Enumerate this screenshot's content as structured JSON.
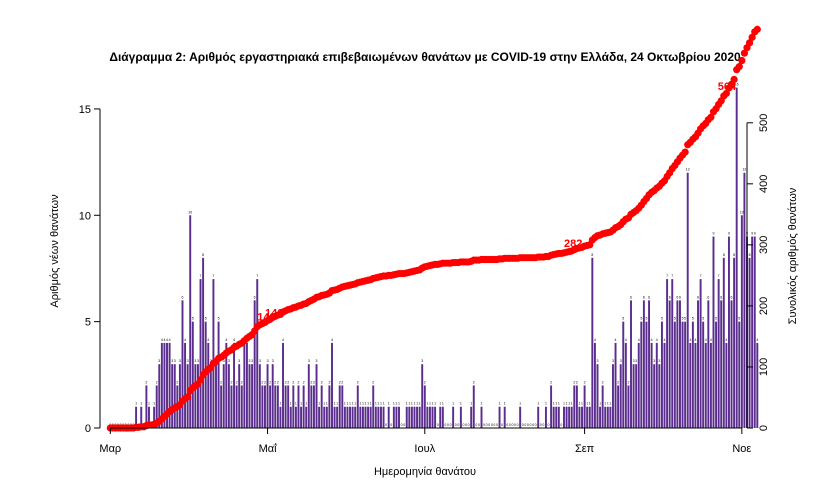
{
  "chart_data": {
    "type": "bar",
    "title": "Διάγραμμα 2: Αριθμός εργαστηριακά επιβεβαιωμένων θανάτων με COVID-19 στην Ελλάδα, 24 Οκτωβρίου 2020",
    "xlabel": "Ημερομηνία θανάτου",
    "ylabel": "Αριθμός νέων θανάτων",
    "ylabel_right": "Συνολικός αριθμός θανάτων",
    "x_ticks": [
      "Μαρ",
      "Μαΐ",
      "Ιουλ",
      "Σεπ",
      "Νοε"
    ],
    "x_tick_dates": [
      "2020-03-01",
      "2020-05-01",
      "2020-07-01",
      "2020-09-01",
      "2020-11-01"
    ],
    "y_ticks": [
      0,
      5,
      10,
      15
    ],
    "y_right_ticks": [
      0,
      100,
      200,
      300,
      400,
      500
    ],
    "ylim": [
      0,
      16.5
    ],
    "ylim_right": [
      0,
      575
    ],
    "x_range": [
      "2020-02-26",
      "2020-11-03"
    ],
    "bar_color": "#5b2d8e",
    "line_color": "#ff0000",
    "start_date": "2020-03-01",
    "daily_deaths": [
      0,
      0,
      0,
      0,
      0,
      0,
      0,
      0,
      0,
      0,
      1,
      0,
      1,
      0,
      2,
      1,
      0,
      1,
      2,
      3,
      4,
      4,
      4,
      4,
      3,
      3,
      2,
      3,
      6,
      4,
      3,
      10,
      5,
      3,
      3,
      7,
      8,
      5,
      4,
      3,
      7,
      3,
      5,
      2,
      3,
      4,
      3,
      2,
      4,
      2,
      3,
      2,
      4,
      4,
      3,
      3,
      6,
      7,
      3,
      2,
      2,
      3,
      2,
      3,
      2,
      2,
      1,
      4,
      2,
      2,
      1,
      2,
      1,
      2,
      1,
      2,
      1,
      3,
      2,
      2,
      3,
      1,
      2,
      1,
      1,
      2,
      4,
      1,
      1,
      2,
      2,
      1,
      1,
      1,
      1,
      1,
      2,
      1,
      1,
      1,
      1,
      1,
      2,
      1,
      1,
      1,
      1,
      0,
      1,
      0,
      1,
      1,
      1,
      0,
      0,
      1,
      1,
      1,
      1,
      1,
      1,
      3,
      2,
      1,
      1,
      1,
      1,
      0,
      1,
      1,
      0,
      0,
      0,
      1,
      0,
      0,
      1,
      0,
      0,
      0,
      1,
      2,
      0,
      0,
      1,
      0,
      0,
      0,
      0,
      0,
      0,
      1,
      0,
      1,
      0,
      0,
      0,
      0,
      0,
      1,
      0,
      0,
      0,
      0,
      0,
      0,
      1,
      0,
      0,
      1,
      0,
      2,
      1,
      1,
      1,
      0,
      1,
      1,
      1,
      1,
      2,
      2,
      1,
      1,
      2,
      1,
      1,
      8,
      4,
      3,
      1,
      2,
      1,
      1,
      1,
      3,
      4,
      2,
      3,
      5,
      4,
      2,
      6,
      3,
      3,
      4,
      5,
      6,
      5,
      6,
      4,
      3,
      4,
      3,
      5,
      4,
      7,
      6,
      7,
      5,
      6,
      6,
      5,
      5,
      12,
      4,
      5,
      4,
      6,
      7,
      5,
      4,
      6,
      4,
      9,
      5,
      7,
      6,
      8,
      4,
      9,
      6,
      8,
      16,
      5,
      10,
      12,
      9,
      8,
      9,
      9,
      4
    ],
    "cumulative": [
      0,
      0,
      0,
      0,
      0,
      0,
      0,
      0,
      0,
      0,
      1,
      1,
      2,
      2,
      4,
      5,
      5,
      6,
      8,
      11,
      15,
      19,
      23,
      27,
      30,
      33,
      35,
      38,
      44,
      48,
      51,
      61,
      66,
      69,
      72,
      79,
      87,
      92,
      96,
      99,
      106,
      109,
      114,
      116,
      119,
      123,
      126,
      128,
      132,
      134,
      137,
      139,
      143,
      147,
      150,
      153,
      159,
      166,
      169,
      171,
      173,
      176,
      178,
      181,
      183,
      185,
      186,
      190,
      192,
      194,
      195,
      197,
      198,
      200,
      201,
      203,
      204,
      207,
      209,
      211,
      214,
      215,
      217,
      218,
      219,
      221,
      225,
      226,
      227,
      229,
      231,
      232,
      233,
      234,
      235,
      236,
      238,
      239,
      240,
      241,
      242,
      243,
      245,
      246,
      247,
      248,
      249,
      249,
      250,
      250,
      251,
      252,
      253,
      253,
      253,
      254,
      255,
      256,
      257,
      258,
      259,
      262,
      264,
      265,
      266,
      267,
      268,
      268,
      269,
      270,
      270,
      270,
      270,
      271,
      271,
      271,
      272,
      272,
      272,
      272,
      273,
      275,
      275,
      275,
      276,
      276,
      276,
      276,
      276,
      276,
      276,
      277,
      277,
      278,
      278,
      278,
      278,
      278,
      278,
      279,
      279,
      279,
      279,
      279,
      279,
      279,
      280,
      280,
      280,
      281,
      281,
      283,
      284,
      285,
      286,
      286,
      287,
      288,
      289,
      290,
      292,
      294,
      295,
      296,
      298,
      299,
      300,
      308,
      312,
      315,
      316,
      318,
      319,
      320,
      321,
      324,
      328,
      330,
      333,
      338,
      342,
      344,
      350,
      353,
      356,
      360,
      365,
      371,
      376,
      382,
      386,
      389,
      393,
      396,
      401,
      405,
      412,
      418,
      425,
      430,
      436,
      442,
      447,
      452,
      464,
      468,
      473,
      477,
      483,
      490,
      495,
      499,
      505,
      509,
      518,
      523,
      530,
      536,
      544,
      548,
      557,
      563,
      571,
      587,
      592,
      602,
      614,
      623,
      631,
      640,
      649,
      653
    ],
    "cumulative_annotations": [
      {
        "label": "140",
        "day": 57
      },
      {
        "label": "140",
        "day": 60
      },
      {
        "label": "282",
        "day": 176
      },
      {
        "label": "564",
        "day": 238
      }
    ]
  }
}
